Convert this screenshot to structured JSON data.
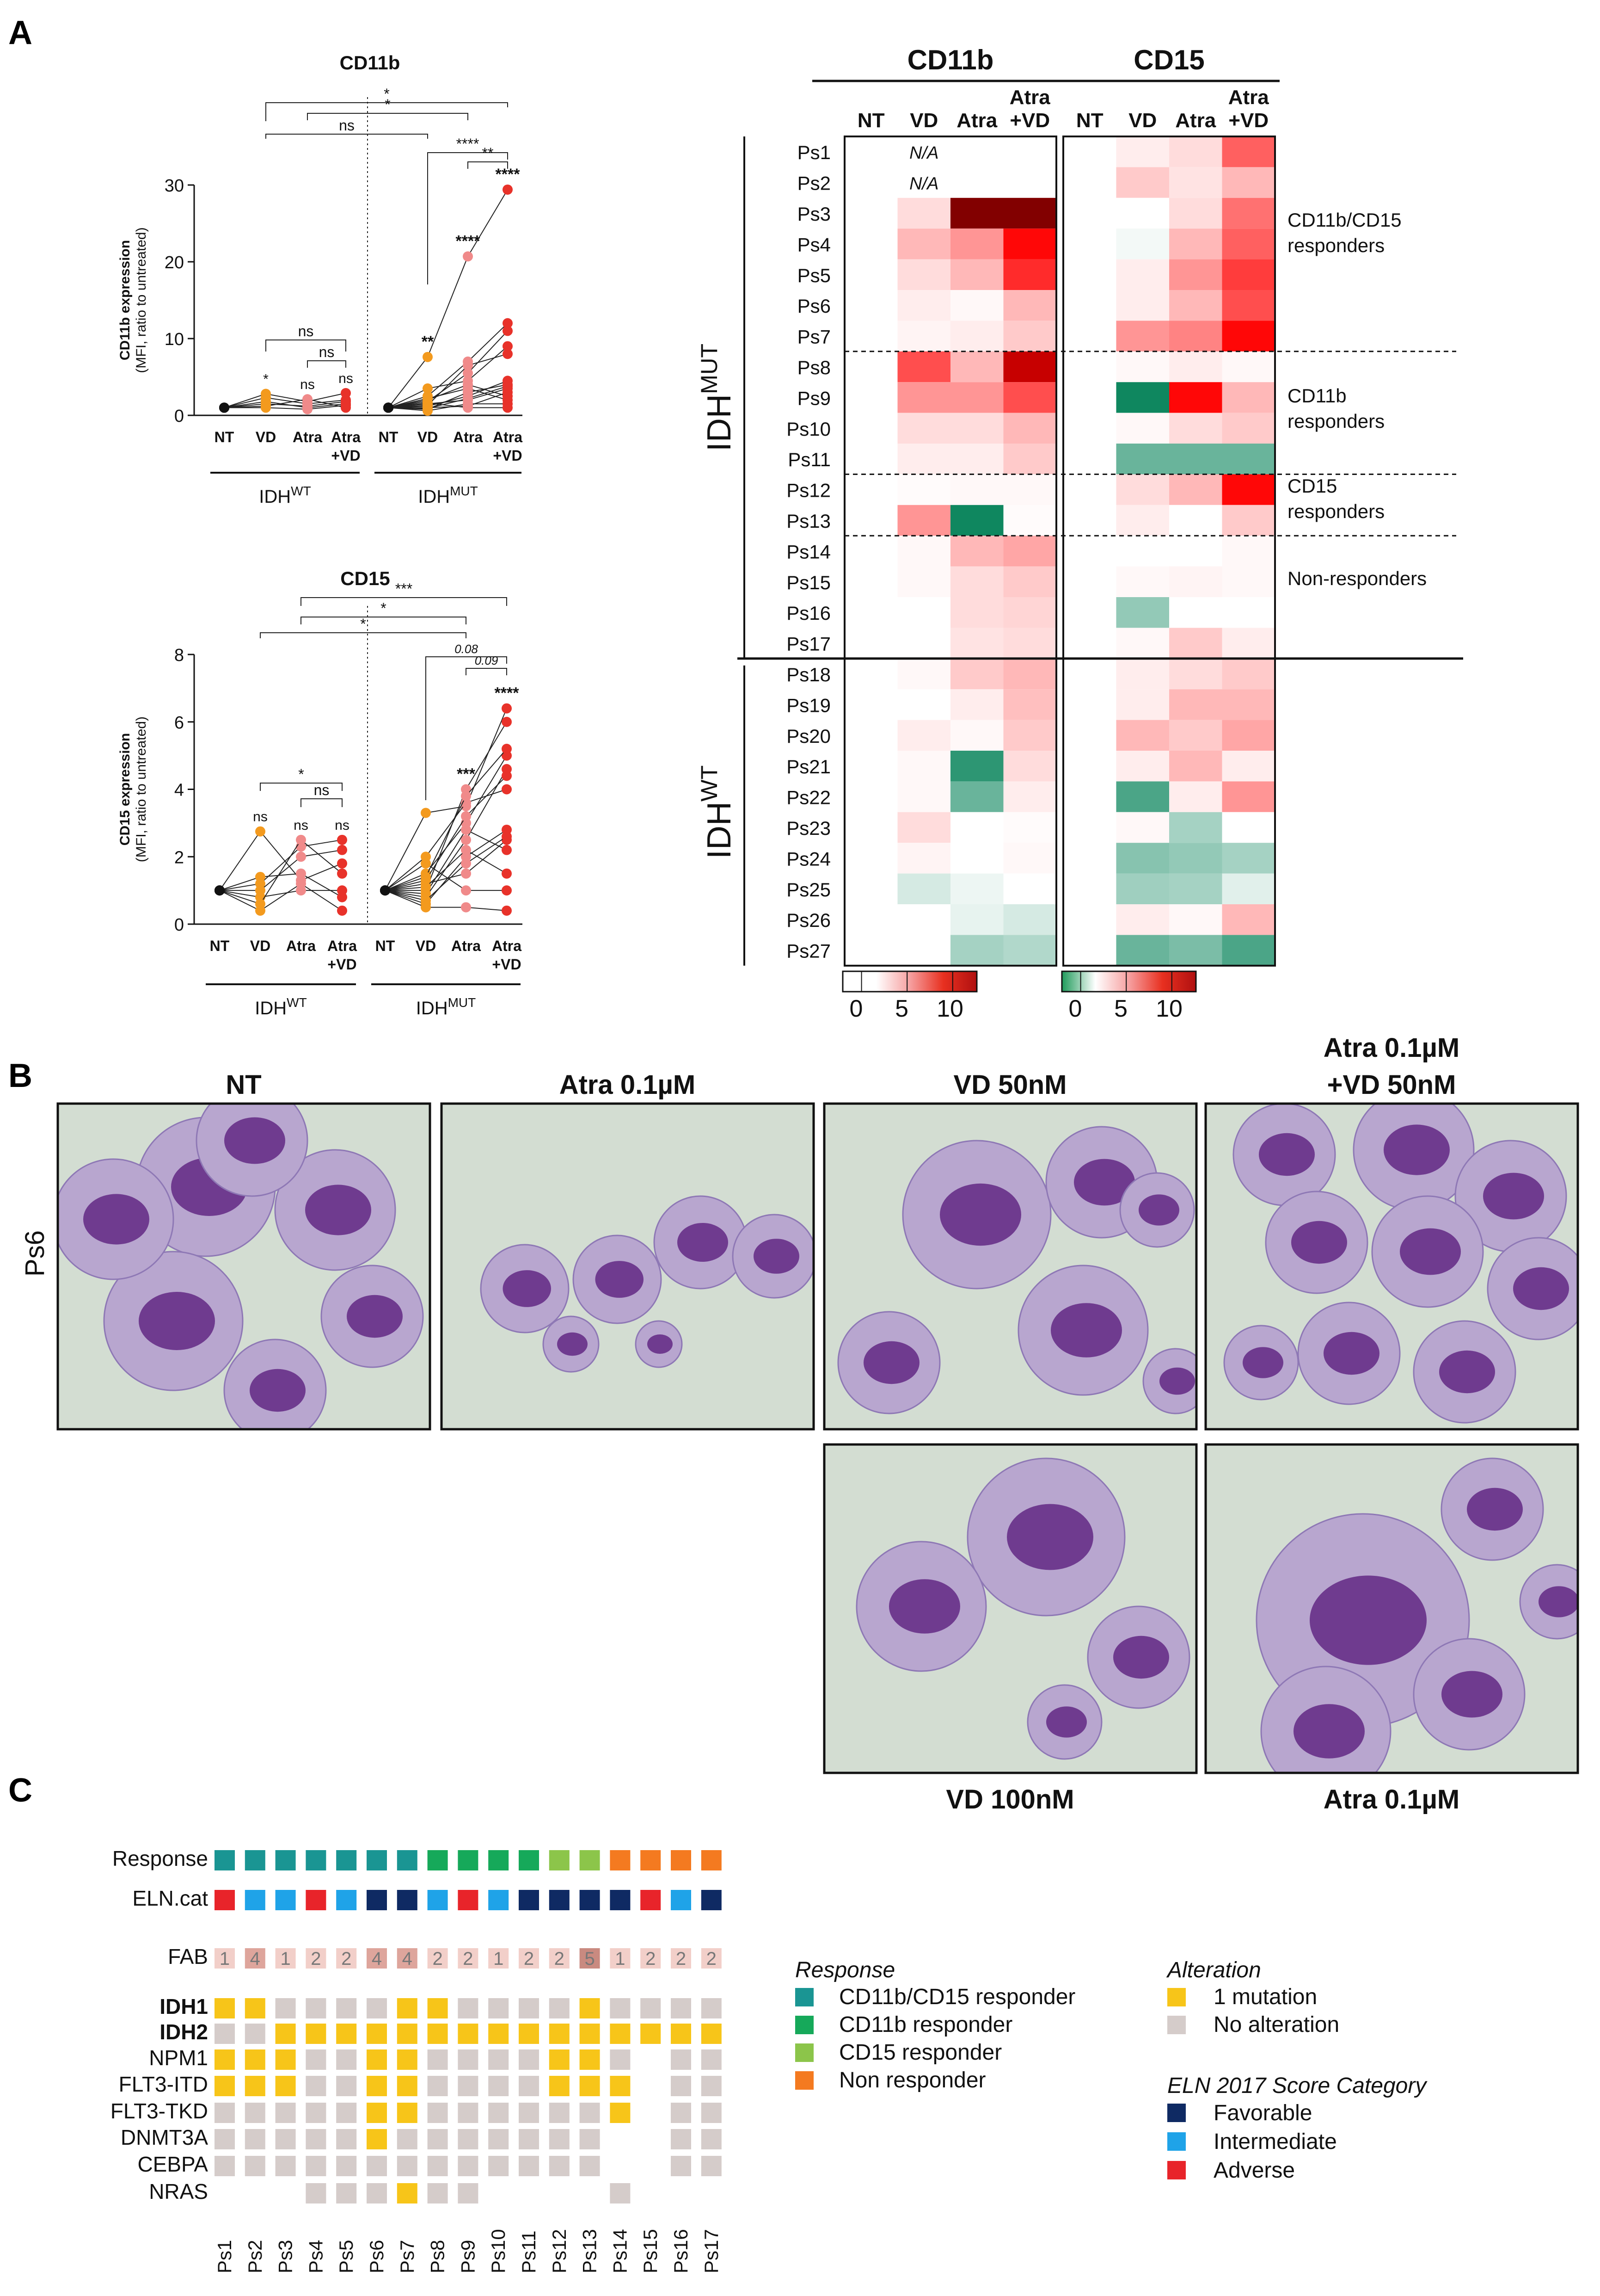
{
  "panel_labels": {
    "a": "A",
    "b": "B",
    "c": "C"
  },
  "chart_data": [
    {
      "type": "line",
      "name": "CD11b expression plot",
      "title": "CD11b",
      "ylabel": "CD11b expression",
      "ylabel_sub": "(MFI, ratio to untreated)",
      "ylim": [
        0,
        30
      ],
      "yticks": [
        "0",
        "10",
        "20",
        "30"
      ],
      "categories": [
        "NT",
        "VD",
        "Atra",
        "Atra\n+VD"
      ],
      "cat_lines": [
        [
          "NT"
        ],
        [
          "VD"
        ],
        [
          "Atra"
        ],
        [
          "Atra",
          "+VD"
        ]
      ],
      "groups": [
        "IDHᵂᵀ",
        "IDHᴹᵁᵀ"
      ],
      "group_base": [
        "IDH",
        "IDH"
      ],
      "group_sup": [
        "WT",
        "MUT"
      ],
      "series_wt": [
        [
          1,
          1.5,
          1.2,
          1.8
        ],
        [
          1,
          2.3,
          1.5,
          2.0
        ],
        [
          1,
          1.0,
          0.8,
          1.3
        ],
        [
          1,
          2.8,
          1.8,
          2.9
        ],
        [
          1,
          1.2,
          2.1,
          1.0
        ],
        [
          1,
          1.8,
          1.0,
          1.5
        ]
      ],
      "series_mut": [
        [
          1,
          7.6,
          20.7,
          29.4
        ],
        [
          1,
          2.5,
          7.0,
          12.0
        ],
        [
          1,
          1.8,
          5.5,
          11.0
        ],
        [
          1,
          3.5,
          4.5,
          9.0
        ],
        [
          1,
          1.2,
          2.5,
          4.5
        ],
        [
          1,
          0.8,
          3.0,
          4.0
        ],
        [
          1,
          1.5,
          2.0,
          3.5
        ],
        [
          1,
          1.0,
          1.2,
          3.0
        ],
        [
          1,
          2.0,
          4.0,
          2.5
        ],
        [
          1,
          0.6,
          1.5,
          1.5
        ],
        [
          1,
          1.3,
          6.5,
          8.0
        ],
        [
          1,
          2.2,
          3.5,
          2.0
        ],
        [
          1,
          0.9,
          2.2,
          3.8
        ],
        [
          1,
          1.6,
          1.0,
          1.0
        ]
      ],
      "wt_stars": [
        "*",
        "ns",
        "ns"
      ],
      "mut_stars": [
        "**",
        "****",
        "****"
      ],
      "brackets": [
        {
          "label": "*"
        },
        {
          "label": "*"
        },
        {
          "label": "ns"
        },
        {
          "label": "ns"
        },
        {
          "label": "ns"
        },
        {
          "label": "****"
        },
        {
          "label": "**"
        }
      ]
    },
    {
      "type": "line",
      "name": "CD15 expression plot",
      "title": "CD15",
      "ylabel": "CD15 expression",
      "ylabel_sub": "(MFI, ratio to untreated)",
      "ylim": [
        0,
        8
      ],
      "yticks": [
        "0",
        "2",
        "4",
        "6",
        "8"
      ],
      "categories": [
        "NT",
        "VD",
        "Atra",
        "Atra\n+VD"
      ],
      "cat_lines": [
        [
          "NT"
        ],
        [
          "VD"
        ],
        [
          "Atra"
        ],
        [
          "Atra",
          "+VD"
        ]
      ],
      "group_base": [
        "IDH",
        "IDH"
      ],
      "group_sup": [
        "WT",
        "MUT"
      ],
      "series_wt": [
        [
          1,
          2.75,
          1.3,
          1.8
        ],
        [
          1,
          1.2,
          2.3,
          2.5
        ],
        [
          1,
          0.8,
          1.0,
          1.0
        ],
        [
          1,
          1.0,
          2.0,
          2.2
        ],
        [
          1,
          0.6,
          2.5,
          1.5
        ],
        [
          1,
          1.4,
          1.5,
          0.8
        ],
        [
          1,
          0.4,
          1.2,
          0.4
        ]
      ],
      "series_mut": [
        [
          1,
          3.3,
          3.5,
          6.4
        ],
        [
          1,
          1.0,
          4.0,
          6.0
        ],
        [
          1,
          1.5,
          3.0,
          5.0
        ],
        [
          1,
          0.8,
          2.5,
          4.6
        ],
        [
          1,
          1.3,
          3.2,
          4.4
        ],
        [
          1,
          2.0,
          3.6,
          4.0
        ],
        [
          1,
          0.6,
          2.0,
          2.8
        ],
        [
          1,
          1.2,
          1.5,
          2.5
        ],
        [
          1,
          0.9,
          2.8,
          2.2
        ],
        [
          1,
          1.8,
          1.0,
          1.0
        ],
        [
          1,
          0.5,
          0.5,
          0.4
        ],
        [
          1,
          1.1,
          2.2,
          1.5
        ],
        [
          1,
          1.4,
          3.8,
          5.2
        ],
        [
          1,
          0.7,
          1.8,
          2.6
        ]
      ],
      "wt_stars": [
        "ns",
        "ns",
        "ns"
      ],
      "mut_stars": [
        "",
        "***",
        "****"
      ],
      "brackets": [
        {
          "label": "***"
        },
        {
          "label": "*"
        },
        {
          "label": "*"
        },
        {
          "label": "*"
        },
        {
          "label": "ns"
        },
        {
          "label": "0.08"
        },
        {
          "label": "0.09"
        }
      ]
    },
    {
      "type": "heatmap",
      "name": "CD11b/CD15 heatmap",
      "blocks": [
        "CD11b",
        "CD15"
      ],
      "columns": [
        "NT",
        "VD",
        "Atra",
        "Atra\n+VD"
      ],
      "col_lines": [
        [
          "NT"
        ],
        [
          "VD"
        ],
        [
          "Atra"
        ],
        [
          "Atra",
          "+VD"
        ]
      ],
      "rows": [
        "Ps1",
        "Ps2",
        "Ps3",
        "Ps4",
        "Ps5",
        "Ps6",
        "Ps7",
        "Ps8",
        "Ps9",
        "Ps10",
        "Ps11",
        "Ps12",
        "Ps13",
        "Ps14",
        "Ps15",
        "Ps16",
        "Ps17",
        "Ps18",
        "Ps19",
        "Ps20",
        "Ps21",
        "Ps22",
        "Ps23",
        "Ps24",
        "Ps25",
        "Ps26",
        "Ps27"
      ],
      "na_label": "N/A",
      "na_rows": [
        0,
        1
      ],
      "cd11b": [
        [
          1,
          null,
          null,
          null
        ],
        [
          1,
          null,
          null,
          null
        ],
        [
          1,
          2,
          20,
          29
        ],
        [
          1,
          3,
          4,
          8
        ],
        [
          1,
          2,
          3,
          7
        ],
        [
          1,
          1.5,
          1.2,
          3
        ],
        [
          1,
          1.3,
          1.5,
          2.5
        ],
        [
          1,
          6,
          3,
          9
        ],
        [
          1,
          4,
          4,
          6
        ],
        [
          1,
          2,
          2,
          3
        ],
        [
          1,
          1.5,
          1.5,
          2.5
        ],
        [
          1,
          1.1,
          1.2,
          1.2
        ],
        [
          1,
          4,
          -3,
          1.1
        ],
        [
          1,
          1.2,
          3,
          3.5
        ],
        [
          1,
          1.2,
          2,
          2.5
        ],
        [
          1,
          1,
          2,
          2.2
        ],
        [
          1,
          1,
          1.8,
          2
        ],
        [
          1,
          1.2,
          2.5,
          3
        ],
        [
          1,
          1,
          1.5,
          2.8
        ],
        [
          1,
          1.5,
          1.2,
          2.5
        ],
        [
          1,
          1.2,
          -2.5,
          2
        ],
        [
          1,
          1.2,
          -1.5,
          1.5
        ],
        [
          1,
          2,
          1,
          1.1
        ],
        [
          1,
          1.3,
          1,
          1.2
        ],
        [
          1,
          0.3,
          0.7,
          1
        ],
        [
          1,
          1,
          0.6,
          0.3
        ],
        [
          1,
          1,
          -0.5,
          -0.3
        ]
      ],
      "cd15": [
        [
          1,
          1.5,
          2,
          5.5
        ],
        [
          1,
          2.5,
          1.8,
          3
        ],
        [
          1,
          1,
          2,
          5
        ],
        [
          1,
          0.8,
          3,
          5.5
        ],
        [
          1,
          1.5,
          4,
          6.5
        ],
        [
          1,
          1.5,
          3,
          6
        ],
        [
          1,
          4,
          4.5,
          8
        ],
        [
          1,
          1.2,
          1.5,
          1.2
        ],
        [
          1,
          -3,
          8,
          3
        ],
        [
          1,
          1.2,
          2,
          2.5
        ],
        [
          1,
          -1.5,
          -1.5,
          -1.5
        ],
        [
          1,
          2,
          3,
          8
        ],
        [
          1,
          1.5,
          1,
          2.5
        ],
        [
          1,
          1,
          1,
          1.2
        ],
        [
          1,
          1.2,
          1.3,
          1.2
        ],
        [
          1,
          -0.8,
          1,
          1
        ],
        [
          1,
          1.2,
          2.5,
          1.5
        ],
        [
          1,
          1.5,
          2,
          2.5
        ],
        [
          1,
          1.5,
          3,
          3
        ],
        [
          1,
          3,
          2.5,
          3.5
        ],
        [
          1,
          1.5,
          3,
          1.5
        ],
        [
          1,
          -2,
          1.5,
          4
        ],
        [
          1,
          1.2,
          -0.5,
          1
        ],
        [
          1,
          -1,
          -0.8,
          -0.5
        ],
        [
          1,
          -0.6,
          -0.5,
          0.5
        ],
        [
          1,
          1.5,
          1.2,
          3
        ],
        [
          1,
          -1.5,
          -1.2,
          -2
        ]
      ],
      "group_base": [
        "IDH",
        "IDH"
      ],
      "group_sup": [
        "MUT",
        "WT"
      ],
      "categories_side": [
        [
          "CD11b/CD15",
          "responders"
        ],
        [
          "CD11b",
          "responders"
        ],
        [
          "CD15",
          "responders"
        ],
        [
          "Non-responders"
        ]
      ],
      "legend_ticks": [
        "0",
        "5",
        "10"
      ]
    }
  ],
  "panel_b": {
    "top_titles": [
      "NT",
      "Atra 0.1µM",
      "VD 50nM",
      "Atra 0.1µM",
      "+VD 50nM"
    ],
    "bottom_titles": [
      "VD 100nM",
      "Atra 0.1µM"
    ],
    "row_label": "Ps6"
  },
  "panel_c": {
    "row_labels": [
      "Response",
      "ELN.cat",
      "FAB",
      "IDH1",
      "IDH2",
      "NPM1",
      "FLT3-ITD",
      "FLT3-TKD",
      "DNMT3A",
      "CEBPA",
      "NRAS"
    ],
    "patients": [
      "Ps1",
      "Ps2",
      "Ps3",
      "Ps4",
      "Ps5",
      "Ps6",
      "Ps7",
      "Ps8",
      "Ps9",
      "Ps10",
      "Ps11",
      "Ps12",
      "Ps13",
      "Ps14",
      "Ps15",
      "Ps16",
      "Ps17"
    ],
    "response": [
      0,
      0,
      0,
      0,
      0,
      0,
      0,
      1,
      1,
      1,
      1,
      2,
      2,
      3,
      3,
      3,
      3
    ],
    "eln": [
      2,
      1,
      1,
      2,
      1,
      0,
      0,
      1,
      2,
      1,
      0,
      0,
      0,
      0,
      2,
      1,
      0
    ],
    "fab": [
      "1",
      "4",
      "1",
      "2",
      "2",
      "4",
      "4",
      "2",
      "2",
      "1",
      "2",
      "2",
      "5",
      "1",
      "2",
      "2",
      "2"
    ],
    "mutations": {
      "IDH1": [
        1,
        1,
        0,
        0,
        0,
        0,
        1,
        1,
        0,
        0,
        0,
        0,
        1,
        0,
        0,
        0,
        0
      ],
      "IDH2": [
        0,
        0,
        1,
        1,
        1,
        1,
        1,
        1,
        1,
        1,
        1,
        1,
        1,
        1,
        1,
        1,
        1
      ],
      "NPM1": [
        1,
        1,
        1,
        0,
        0,
        1,
        1,
        0,
        0,
        0,
        0,
        1,
        1,
        0,
        0,
        0,
        0
      ],
      "FLT3-ITD": [
        1,
        1,
        1,
        0,
        0,
        1,
        1,
        0,
        0,
        0,
        0,
        1,
        1,
        1,
        0,
        0,
        0
      ],
      "FLT3-TKD": [
        0,
        0,
        0,
        0,
        0,
        1,
        1,
        0,
        0,
        0,
        0,
        0,
        0,
        1,
        0,
        0,
        0
      ],
      "DNMT3A": [
        0,
        0,
        0,
        0,
        0,
        1,
        0,
        0,
        0,
        0,
        0,
        0,
        0,
        0,
        0,
        0,
        0
      ],
      "CEBPA": [
        0,
        0,
        0,
        0,
        0,
        0,
        0,
        0,
        0,
        0,
        0,
        0,
        0,
        0,
        0,
        0,
        0
      ],
      "NRAS": [
        0,
        0,
        0,
        0,
        0,
        0,
        1,
        0,
        0,
        0,
        0,
        0,
        0,
        0,
        0,
        0,
        0
      ]
    },
    "present": {
      "IDH1": [
        1,
        1,
        1,
        1,
        1,
        1,
        1,
        1,
        1,
        1,
        1,
        1,
        1,
        1,
        1,
        1,
        1
      ],
      "IDH2": [
        1,
        1,
        1,
        1,
        1,
        1,
        1,
        1,
        1,
        1,
        1,
        1,
        1,
        1,
        1,
        1,
        1
      ],
      "NPM1": [
        1,
        1,
        1,
        1,
        1,
        1,
        1,
        1,
        1,
        1,
        1,
        1,
        1,
        1,
        0,
        1,
        1
      ],
      "FLT3-ITD": [
        1,
        1,
        1,
        1,
        1,
        1,
        1,
        1,
        1,
        1,
        1,
        1,
        1,
        1,
        0,
        1,
        1
      ],
      "FLT3-TKD": [
        1,
        1,
        1,
        1,
        1,
        1,
        1,
        1,
        1,
        1,
        1,
        1,
        1,
        1,
        0,
        1,
        1
      ],
      "DNMT3A": [
        1,
        1,
        1,
        1,
        1,
        1,
        1,
        1,
        1,
        1,
        1,
        1,
        1,
        0,
        0,
        1,
        1
      ],
      "CEBPA": [
        1,
        1,
        1,
        1,
        1,
        1,
        1,
        1,
        1,
        1,
        1,
        1,
        1,
        0,
        0,
        1,
        1
      ],
      "NRAS": [
        0,
        0,
        0,
        1,
        1,
        1,
        1,
        1,
        1,
        0,
        0,
        0,
        0,
        1,
        0,
        0,
        0
      ]
    },
    "legend": {
      "response_title": "Response",
      "response_items": [
        "CD11b/CD15 responder",
        "CD11b responder",
        "CD15 responder",
        "Non responder"
      ],
      "alteration_title": "Alteration",
      "alteration_items": [
        "1 mutation",
        "No alteration"
      ],
      "eln_title": "ELN 2017 Score Category",
      "eln_items": [
        "Favorable",
        "Intermediate",
        "Adverse"
      ]
    },
    "colors": {
      "response": [
        "#1a9593",
        "#16a95a",
        "#8cc54a",
        "#f47a20"
      ],
      "eln": [
        "#0f2a63",
        "#1fa3e8",
        "#e8242a"
      ],
      "mutation": "#f7c519",
      "no_alteration": "#d5ccca"
    }
  }
}
